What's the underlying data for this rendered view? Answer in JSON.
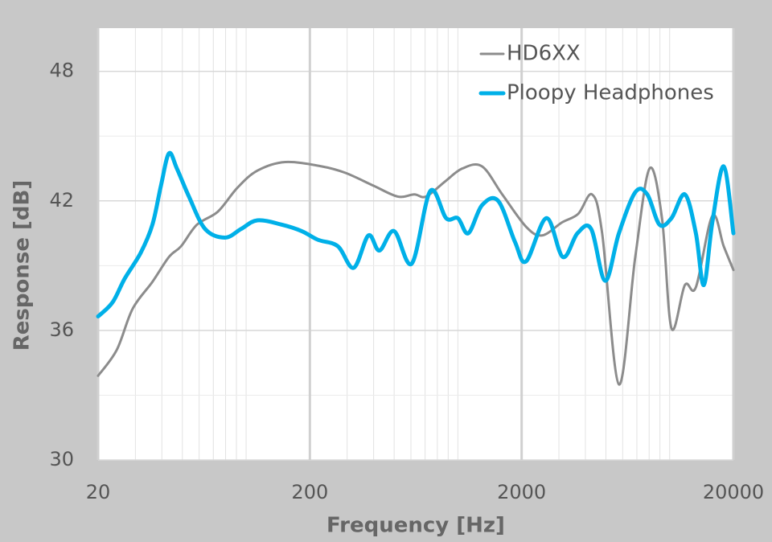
{
  "chart_data": {
    "type": "line",
    "x_label": "Frequency [Hz]",
    "y_label": "Response [dB]",
    "xscale": "log",
    "xlim": [
      20,
      20000
    ],
    "xticks": [
      20,
      200,
      2000,
      20000
    ],
    "ylim": [
      30,
      50
    ],
    "yticks": [
      30,
      36,
      42,
      48
    ],
    "grid": true,
    "legend": "upper right",
    "series": [
      {
        "name": "HD6XX",
        "color": "#8c8c8c",
        "x": [
          20,
          24.5,
          29.1,
          36.1,
          43.2,
          49.3,
          58.6,
          73.5,
          90.8,
          113,
          153,
          227,
          294,
          400,
          520,
          622,
          707,
          870,
          1050,
          1300,
          1620,
          2100,
          2500,
          3100,
          3700,
          4300,
          4800,
          5760,
          6880,
          8040,
          9200,
          10200,
          11800,
          13300,
          15900,
          18000,
          20000
        ],
        "values": [
          33.9,
          35.1,
          37.0,
          38.25,
          39.4,
          39.9,
          40.9,
          41.5,
          42.6,
          43.4,
          43.8,
          43.6,
          43.3,
          42.7,
          42.2,
          42.3,
          42.2,
          42.9,
          43.5,
          43.6,
          42.3,
          40.8,
          40.4,
          41.0,
          41.4,
          42.3,
          40.5,
          33.5,
          39.4,
          43.5,
          41.2,
          36.1,
          38.1,
          38.0,
          41.3,
          39.9,
          38.8
        ]
      },
      {
        "name": "Ploopy Headphones",
        "color": "#00b0e8",
        "x": [
          20,
          23.4,
          26.7,
          31.8,
          36.1,
          39.6,
          43.2,
          47.1,
          53.7,
          64.0,
          79.5,
          94.7,
          113,
          147,
          183,
          218,
          271,
          322,
          378,
          426,
          500,
          606,
          740,
          880,
          1000,
          1120,
          1300,
          1550,
          1860,
          2100,
          2620,
          3130,
          3670,
          4260,
          4960,
          5760,
          6880,
          7840,
          8950,
          10200,
          11800,
          13300,
          14500,
          15900,
          18000,
          20000
        ],
        "values": [
          36.65,
          37.3,
          38.4,
          39.6,
          40.9,
          42.7,
          44.2,
          43.5,
          42.2,
          40.7,
          40.3,
          40.7,
          41.1,
          40.9,
          40.6,
          40.2,
          39.9,
          38.9,
          40.4,
          39.7,
          40.6,
          39.1,
          42.45,
          41.2,
          41.2,
          40.5,
          41.8,
          42.0,
          40.1,
          39.2,
          41.2,
          39.4,
          40.5,
          40.7,
          38.3,
          40.5,
          42.4,
          42.3,
          40.9,
          41.2,
          42.3,
          40.5,
          38.1,
          41.0,
          43.6,
          40.5
        ]
      }
    ]
  }
}
